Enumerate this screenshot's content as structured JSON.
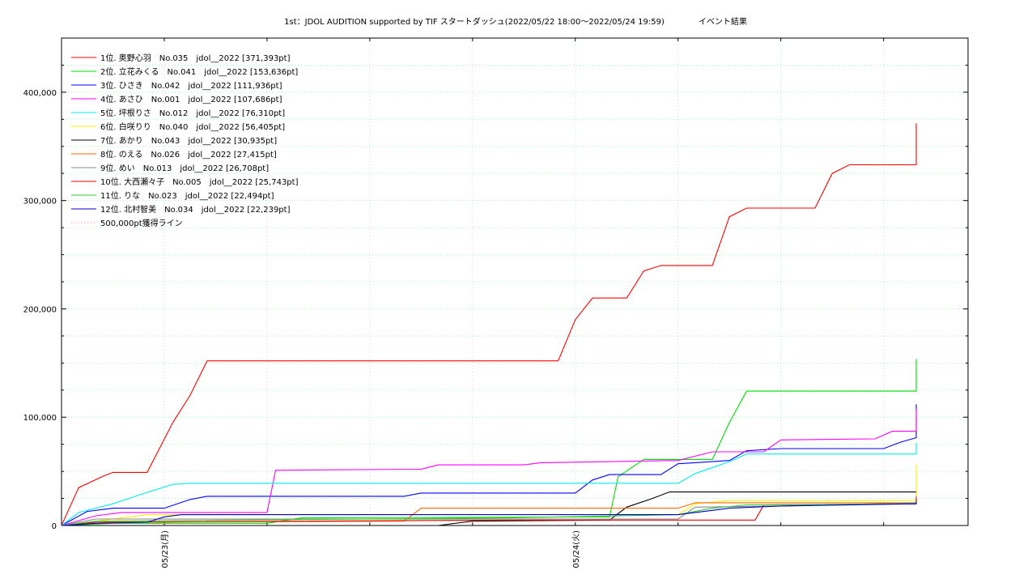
{
  "chart_data": {
    "type": "line",
    "title": "1st：JDOL AUDITION supported by TIF スタートダッシュ(2022/05/22 18:00～2022/05/24 19:59)",
    "subtitle": "イベント結果",
    "x_range": [
      "2022/05/22 18:00",
      "2022/05/24 19:59"
    ],
    "x_tick_labels": [
      "05/23(月)",
      "05/24(火)"
    ],
    "ylim": [
      0,
      450000
    ],
    "y_tick_values": [
      0,
      100000,
      200000,
      300000,
      400000
    ],
    "y_tick_labels": [
      "0",
      "100,000",
      "200,000",
      "300,000",
      "400,000"
    ],
    "grid": true,
    "legend_position": "top-left",
    "series": [
      {
        "name": "1位. 奥野心羽　No.035　jdol__2022 [371,393pt]",
        "color": "#ff0000",
        "points": [
          [
            "05/22 18:00",
            0
          ],
          [
            "05/22 19:00",
            35000
          ],
          [
            "05/22 20:30",
            46000
          ],
          [
            "05/22 21:00",
            49000
          ],
          [
            "05/22 23:00",
            49000
          ],
          [
            "05/23 00:30",
            95000
          ],
          [
            "05/23 01:30",
            120000
          ],
          [
            "05/23 02:30",
            152000
          ],
          [
            "05/23 23:00",
            152000
          ],
          [
            "05/23 24:00",
            190000
          ],
          [
            "05/24 01:00",
            210000
          ],
          [
            "05/24 03:00",
            210000
          ],
          [
            "05/24 04:00",
            235000
          ],
          [
            "05/24 05:00",
            240000
          ],
          [
            "05/24 08:00",
            240000
          ],
          [
            "05/24 09:00",
            285000
          ],
          [
            "05/24 10:00",
            293000
          ],
          [
            "05/24 14:00",
            293000
          ],
          [
            "05/24 15:00",
            325000
          ],
          [
            "05/24 16:00",
            333000
          ],
          [
            "05/24 23:30",
            333000
          ],
          [
            "05/25 00:30",
            371393
          ],
          [
            "05/25 02:30",
            371393
          ]
        ]
      },
      {
        "name": "2位. 立花みくる　No.041　jdol__2022 [153,636pt]",
        "color": "#00dd00",
        "points": [
          [
            "05/22 18:00",
            0
          ],
          [
            "05/22 21:00",
            2000
          ],
          [
            "05/23 06:00",
            2000
          ],
          [
            "05/23 08:00",
            7000
          ],
          [
            "05/24 02:00",
            8000
          ],
          [
            "05/24 02:30",
            45000
          ],
          [
            "05/24 04:00",
            61000
          ],
          [
            "05/24 08:00",
            61000
          ],
          [
            "05/24 09:00",
            95000
          ],
          [
            "05/24 10:00",
            124000
          ],
          [
            "05/24 17:00",
            124000
          ],
          [
            "05/24 20:30",
            124000
          ],
          [
            "05/24 21:00",
            135000
          ],
          [
            "05/24 23:00",
            136000
          ],
          [
            "05/24 24:00",
            152000
          ],
          [
            "05/25 00:30",
            153636
          ],
          [
            "05/25 02:30",
            153636
          ]
        ]
      },
      {
        "name": "3位. ひさき　No.042　jdol__2022 [111,936pt]",
        "color": "#0000ff",
        "points": [
          [
            "05/22 18:00",
            0
          ],
          [
            "05/22 19:30",
            13000
          ],
          [
            "05/22 21:00",
            16000
          ],
          [
            "05/23 00:00",
            16000
          ],
          [
            "05/23 01:30",
            24000
          ],
          [
            "05/23 02:30",
            27000
          ],
          [
            "05/23 14:00",
            27000
          ],
          [
            "05/23 15:00",
            30000
          ],
          [
            "05/24 00:00",
            30000
          ],
          [
            "05/24 01:00",
            42000
          ],
          [
            "05/24 02:00",
            47000
          ],
          [
            "05/24 05:00",
            47000
          ],
          [
            "05/24 06:00",
            57000
          ],
          [
            "05/24 07:00",
            58000
          ],
          [
            "05/24 09:00",
            60000
          ],
          [
            "05/24 10:00",
            69000
          ],
          [
            "05/24 12:00",
            71000
          ],
          [
            "05/24 18:00",
            71000
          ],
          [
            "05/24 19:00",
            77000
          ],
          [
            "05/24 20:30",
            81000
          ],
          [
            "05/24 23:00",
            81000
          ],
          [
            "05/25 00:00",
            89000
          ],
          [
            "05/25 01:00",
            89000
          ],
          [
            "05/25 02:00",
            99000
          ],
          [
            "05/25 02:30",
            112000
          ]
        ]
      },
      {
        "name": "4位. あさひ　No.001　jdol__2022 [107,686pt]",
        "color": "#ff00ff",
        "points": [
          [
            "05/22 18:00",
            0
          ],
          [
            "05/22 20:00",
            9000
          ],
          [
            "05/22 21:30",
            12000
          ],
          [
            "05/23 06:00",
            12000
          ],
          [
            "05/23 06:30",
            51000
          ],
          [
            "05/23 15:00",
            52000
          ],
          [
            "05/23 16:00",
            56000
          ],
          [
            "05/23 21:00",
            56000
          ],
          [
            "05/23 22:00",
            58000
          ],
          [
            "05/24 06:00",
            60000
          ],
          [
            "05/24 08:00",
            68000
          ],
          [
            "05/24 11:00",
            68000
          ],
          [
            "05/24 12:00",
            79000
          ],
          [
            "05/24 17:30",
            80000
          ],
          [
            "05/24 18:30",
            87000
          ],
          [
            "05/24 21:00",
            87000
          ],
          [
            "05/24 22:00",
            92000
          ],
          [
            "05/24 24:00",
            92000
          ],
          [
            "05/25 00:30",
            97000
          ],
          [
            "05/25 02:00",
            98000
          ],
          [
            "05/25 02:30",
            107686
          ]
        ]
      },
      {
        "name": "5位. 坪根りさ　No.012　jdol__2022 [76,310pt]",
        "color": "#00eeee",
        "points": [
          [
            "05/22 18:00",
            0
          ],
          [
            "05/22 19:00",
            12000
          ],
          [
            "05/22 21:00",
            20000
          ],
          [
            "05/22 22:30",
            28000
          ],
          [
            "05/23 00:30",
            38000
          ],
          [
            "05/23 01:30",
            39000
          ],
          [
            "05/24 06:00",
            39000
          ],
          [
            "05/24 07:00",
            48000
          ],
          [
            "05/24 09:00",
            59000
          ],
          [
            "05/24 10:00",
            66000
          ],
          [
            "05/24 12:00",
            66000
          ],
          [
            "05/25 02:00",
            66000
          ],
          [
            "05/25 02:30",
            76310
          ]
        ]
      },
      {
        "name": "6位. 白咲りり　No.040　jdol__2022 [56,405pt]",
        "color": "#ffee00",
        "points": [
          [
            "05/22 18:00",
            0
          ],
          [
            "05/22 21:00",
            6000
          ],
          [
            "05/22 23:00",
            10000
          ],
          [
            "05/24 06:00",
            10000
          ],
          [
            "05/24 07:00",
            20000
          ],
          [
            "05/24 09:00",
            23000
          ],
          [
            "05/25 02:00",
            23000
          ],
          [
            "05/25 02:30",
            56405
          ]
        ]
      },
      {
        "name": "7位. あかり　No.043　jdol__2022 [30,935pt]",
        "color": "#000000",
        "points": [
          [
            "05/22 18:00",
            0
          ],
          [
            "05/23 16:00",
            0
          ],
          [
            "05/23 18:00",
            4000
          ],
          [
            "05/24 02:00",
            5000
          ],
          [
            "05/24 03:00",
            17000
          ],
          [
            "05/24 04:30",
            25000
          ],
          [
            "05/24 05:30",
            31000
          ],
          [
            "05/25 02:30",
            30935
          ]
        ]
      },
      {
        "name": "8位. のえる　No.026　jdol__2022 [27,415pt]",
        "color": "#ff6600",
        "points": [
          [
            "05/22 18:00",
            0
          ],
          [
            "05/22 20:00",
            3000
          ],
          [
            "05/23 14:00",
            4000
          ],
          [
            "05/23 15:00",
            16000
          ],
          [
            "05/24 06:00",
            16000
          ],
          [
            "05/24 07:00",
            21000
          ],
          [
            "05/24 20:00",
            21000
          ],
          [
            "05/24 21:00",
            24000
          ],
          [
            "05/24 24:00",
            27000
          ],
          [
            "05/25 02:30",
            27415
          ]
        ]
      },
      {
        "name": "9位. めい　No.013　jdol__2022 [26,708pt]",
        "color": "#888888",
        "points": [
          [
            "05/22 18:00",
            0
          ],
          [
            "05/22 20:00",
            6000
          ],
          [
            "05/24 06:00",
            6000
          ],
          [
            "05/24 07:00",
            17000
          ],
          [
            "05/24 12:00",
            18000
          ],
          [
            "05/25 01:00",
            21000
          ],
          [
            "05/25 02:30",
            26708
          ]
        ]
      },
      {
        "name": "10位. 大西瀬々子　No.005　jdol__2022 [25,743pt]",
        "color": "#ee0000",
        "points": [
          [
            "05/22 18:00",
            0
          ],
          [
            "05/22 20:00",
            3000
          ],
          [
            "05/23 20:00",
            5000
          ],
          [
            "05/24 10:30",
            5000
          ],
          [
            "05/24 11:00",
            19000
          ],
          [
            "05/24 20:00",
            20000
          ],
          [
            "05/25 00:00",
            23000
          ],
          [
            "05/25 02:30",
            25743
          ]
        ]
      },
      {
        "name": "11位. りな　No.023　jdol__2022 [22,494pt]",
        "color": "#33cc33",
        "points": [
          [
            "05/22 18:00",
            0
          ],
          [
            "05/22 20:00",
            4000
          ],
          [
            "05/23 20:00",
            7000
          ],
          [
            "05/24 06:00",
            10000
          ],
          [
            "05/24 08:00",
            16000
          ],
          [
            "05/24 10:00",
            19000
          ],
          [
            "05/25 00:00",
            20000
          ],
          [
            "05/25 02:30",
            22494
          ]
        ]
      },
      {
        "name": "12位. 北村智美　No.034　jdol__2022 [22,239pt]",
        "color": "#0000cc",
        "points": [
          [
            "05/22 18:00",
            0
          ],
          [
            "05/22 20:00",
            2000
          ],
          [
            "05/22 23:00",
            3000
          ],
          [
            "05/23 00:00",
            8000
          ],
          [
            "05/23 01:00",
            10000
          ],
          [
            "05/24 06:00",
            10000
          ],
          [
            "05/24 09:00",
            16000
          ],
          [
            "05/24 12:00",
            18000
          ],
          [
            "05/25 01:00",
            20000
          ],
          [
            "05/25 02:30",
            22239
          ]
        ]
      },
      {
        "name": "500,000pt獲得ライン",
        "color": "#ff9999",
        "dotted": true,
        "points": [
          [
            "05/22 18:00",
            500000
          ],
          [
            "05/24 19:59",
            500000
          ]
        ]
      }
    ]
  }
}
